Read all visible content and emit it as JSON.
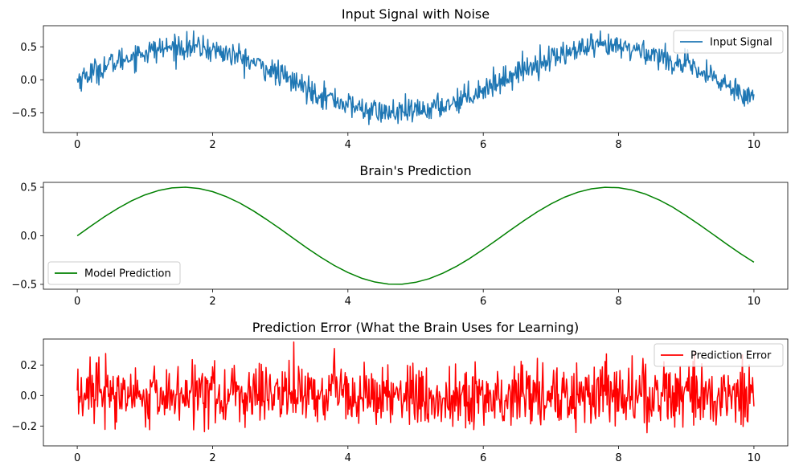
{
  "chart_data": [
    {
      "type": "line",
      "title": "Input Signal with Noise",
      "xlim": [
        -0.5,
        10.5
      ],
      "ylim": [
        -0.8,
        0.82
      ],
      "xticks": [
        0,
        2,
        4,
        6,
        8,
        10
      ],
      "xtick_labels": [
        "0",
        "2",
        "4",
        "6",
        "8",
        "10"
      ],
      "yticks": [
        -0.5,
        0.0,
        0.5
      ],
      "ytick_labels": [
        "−0.5",
        "0.0",
        "0.5"
      ],
      "legend_position": "top-right",
      "series": [
        {
          "name": "Input Signal",
          "color": "#1f77b4",
          "x": [
            0,
            0.2,
            0.4,
            0.6,
            0.8,
            1,
            1.2,
            1.4,
            1.6,
            1.8,
            2,
            2.2,
            2.4,
            2.6,
            2.8,
            3,
            3.2,
            3.4,
            3.6,
            3.8,
            4,
            4.2,
            4.4,
            4.6,
            4.8,
            5,
            5.2,
            5.4,
            5.6,
            5.8,
            6,
            6.2,
            6.4,
            6.6,
            6.8,
            7,
            7.2,
            7.4,
            7.6,
            7.8,
            8,
            8.2,
            8.4,
            8.6,
            8.8,
            9,
            9.2,
            9.4,
            9.6,
            9.8,
            10
          ],
          "y": [
            0.0,
            0.1,
            0.2,
            0.28,
            0.36,
            0.42,
            0.46,
            0.49,
            0.5,
            0.49,
            0.45,
            0.4,
            0.34,
            0.26,
            0.17,
            0.07,
            -0.03,
            -0.13,
            -0.22,
            -0.3,
            -0.38,
            -0.44,
            -0.48,
            -0.5,
            -0.5,
            -0.48,
            -0.44,
            -0.39,
            -0.32,
            -0.23,
            -0.14,
            -0.04,
            0.06,
            0.16,
            0.25,
            0.33,
            0.4,
            0.45,
            0.49,
            0.5,
            0.49,
            0.47,
            0.42,
            0.36,
            0.28,
            0.21,
            0.11,
            0.02,
            -0.08,
            -0.17,
            -0.27
          ]
        }
      ]
    },
    {
      "type": "line",
      "title": "Brain's Prediction",
      "xlim": [
        -0.5,
        10.5
      ],
      "ylim": [
        -0.55,
        0.55
      ],
      "xticks": [
        0,
        2,
        4,
        6,
        8,
        10
      ],
      "xtick_labels": [
        "0",
        "2",
        "4",
        "6",
        "8",
        "10"
      ],
      "yticks": [
        -0.5,
        0.0,
        0.5
      ],
      "ytick_labels": [
        "−0.5",
        "0.0",
        "0.5"
      ],
      "legend_position": "bottom-left",
      "series": [
        {
          "name": "Model Prediction",
          "color": "#008000",
          "x": [
            0,
            0.2,
            0.4,
            0.6,
            0.8,
            1,
            1.2,
            1.4,
            1.6,
            1.8,
            2,
            2.2,
            2.4,
            2.6,
            2.8,
            3,
            3.2,
            3.4,
            3.6,
            3.8,
            4,
            4.2,
            4.4,
            4.6,
            4.8,
            5,
            5.2,
            5.4,
            5.6,
            5.8,
            6,
            6.2,
            6.4,
            6.6,
            6.8,
            7,
            7.2,
            7.4,
            7.6,
            7.8,
            8,
            8.2,
            8.4,
            8.6,
            8.8,
            9,
            9.2,
            9.4,
            9.6,
            9.8,
            10
          ],
          "y": [
            0.0,
            0.099,
            0.195,
            0.282,
            0.359,
            0.421,
            0.466,
            0.493,
            0.5,
            0.487,
            0.455,
            0.404,
            0.338,
            0.258,
            0.167,
            0.071,
            -0.029,
            -0.128,
            -0.221,
            -0.306,
            -0.378,
            -0.436,
            -0.476,
            -0.497,
            -0.498,
            -0.479,
            -0.442,
            -0.386,
            -0.316,
            -0.233,
            -0.14,
            -0.042,
            0.058,
            0.155,
            0.247,
            0.328,
            0.397,
            0.449,
            0.484,
            0.499,
            0.495,
            0.471,
            0.429,
            0.369,
            0.295,
            0.206,
            0.112,
            0.013,
            -0.087,
            -0.183,
            -0.272
          ]
        }
      ]
    },
    {
      "type": "line",
      "title": "Prediction Error (What the Brain Uses for Learning)",
      "xlim": [
        -0.5,
        10.5
      ],
      "ylim": [
        -0.33,
        0.37
      ],
      "xticks": [
        0,
        2,
        4,
        6,
        8,
        10
      ],
      "xtick_labels": [
        "0",
        "2",
        "4",
        "6",
        "8",
        "10"
      ],
      "yticks": [
        -0.2,
        0.0,
        0.2
      ],
      "ytick_labels": [
        "−0.2",
        "0.0",
        "0.2"
      ],
      "legend_position": "top-right",
      "series": [
        {
          "name": "Prediction Error",
          "color": "#ff0000",
          "x": [
            0,
            0.2,
            0.4,
            0.6,
            0.8,
            1,
            1.2,
            1.4,
            1.6,
            1.8,
            2,
            2.2,
            2.4,
            2.6,
            2.8,
            3,
            3.2,
            3.4,
            3.6,
            3.8,
            4,
            4.2,
            4.4,
            4.6,
            4.8,
            5,
            5.2,
            5.4,
            5.6,
            5.8,
            6,
            6.2,
            6.4,
            6.6,
            6.8,
            7,
            7.2,
            7.4,
            7.6,
            7.8,
            8,
            8.2,
            8.4,
            8.6,
            8.8,
            9,
            9.2,
            9.4,
            9.6,
            9.8,
            10
          ],
          "y": [
            0.0,
            0.0,
            0.0,
            0.0,
            0.0,
            0.0,
            0.0,
            0.0,
            0.0,
            0.0,
            0.0,
            0.0,
            0.0,
            0.0,
            0.0,
            0.0,
            0.0,
            0.0,
            0.0,
            0.0,
            0.0,
            0.0,
            0.0,
            0.0,
            0.0,
            0.0,
            0.0,
            0.0,
            0.0,
            0.0,
            0.0,
            0.0,
            0.0,
            0.0,
            0.0,
            0.0,
            0.0,
            0.0,
            0.0,
            0.0,
            0.0,
            0.0,
            0.0,
            0.0,
            0.0,
            0.0,
            0.0,
            0.0,
            0.0,
            0.0,
            0.0
          ]
        }
      ]
    }
  ]
}
